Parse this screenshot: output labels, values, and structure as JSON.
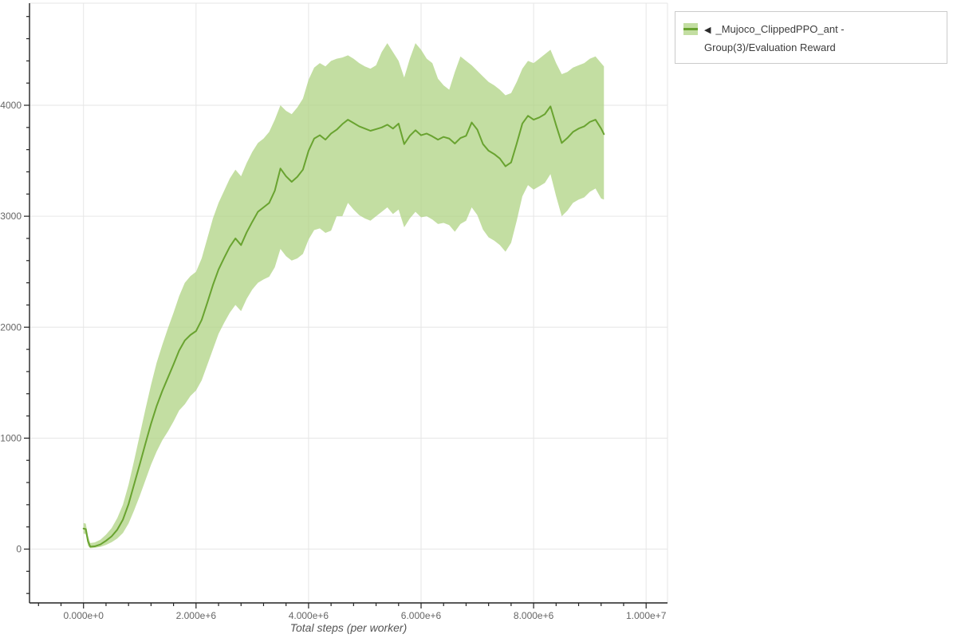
{
  "window": {
    "background": "#ffffff"
  },
  "legend": {
    "marker": "◀",
    "label": "_Mujoco_ClippedPPO_ant - Group(3)/Evaluation Reward"
  },
  "chart_data": {
    "type": "line",
    "title": "",
    "xlabel": "Total steps (per worker)",
    "ylabel": "",
    "grid": true,
    "legend_position": "top-right-outside",
    "x_axis": {
      "lim": [
        -960000,
        10380000
      ],
      "minor_step": 400000,
      "ticks": [
        {
          "value": 0,
          "label": "0.000e+0"
        },
        {
          "value": 2000000,
          "label": "2.000e+6"
        },
        {
          "value": 4000000,
          "label": "4.000e+6"
        },
        {
          "value": 6000000,
          "label": "6.000e+6"
        },
        {
          "value": 8000000,
          "label": "8.000e+6"
        },
        {
          "value": 10000000,
          "label": "1.000e+7"
        }
      ]
    },
    "y_axis": {
      "lim": [
        -485,
        4920
      ],
      "minor_step": 200,
      "ticks": [
        {
          "value": 0,
          "label": "0"
        },
        {
          "value": 1000,
          "label": "1000"
        },
        {
          "value": 2000,
          "label": "2000"
        },
        {
          "value": 3000,
          "label": "3000"
        },
        {
          "value": 4000,
          "label": "4000"
        }
      ]
    },
    "colors": {
      "line": "#69a330",
      "band": "#afd383",
      "band_opacity": 0.75,
      "grid": "#e6e6e6",
      "frame_outline": "#e6e6e6",
      "axis": "#222222",
      "tick_label": "#666666",
      "axis_label": "#555555"
    },
    "series": [
      {
        "name": "_Mujoco_ClippedPPO_ant - Group(3)/Evaluation Reward",
        "x": [
          0,
          40000,
          80000,
          120000,
          200000,
          300000,
          400000,
          500000,
          600000,
          700000,
          800000,
          900000,
          1000000,
          1100000,
          1200000,
          1300000,
          1400000,
          1500000,
          1600000,
          1700000,
          1800000,
          1900000,
          2000000,
          2100000,
          2200000,
          2300000,
          2400000,
          2500000,
          2600000,
          2700000,
          2800000,
          2900000,
          3000000,
          3100000,
          3200000,
          3300000,
          3400000,
          3500000,
          3600000,
          3700000,
          3800000,
          3900000,
          4000000,
          4100000,
          4200000,
          4300000,
          4400000,
          4500000,
          4600000,
          4700000,
          4800000,
          4900000,
          5000000,
          5100000,
          5200000,
          5300000,
          5400000,
          5500000,
          5600000,
          5700000,
          5800000,
          5900000,
          6000000,
          6100000,
          6200000,
          6300000,
          6400000,
          6500000,
          6600000,
          6700000,
          6800000,
          6900000,
          7000000,
          7100000,
          7200000,
          7300000,
          7400000,
          7500000,
          7600000,
          7700000,
          7800000,
          7900000,
          8000000,
          8100000,
          8200000,
          8300000,
          8400000,
          8500000,
          8600000,
          8700000,
          8800000,
          8900000,
          9000000,
          9100000,
          9200000,
          9250000
        ],
        "mean": [
          185,
          180,
          70,
          22,
          25,
          42,
          75,
          115,
          175,
          265,
          405,
          585,
          765,
          950,
          1130,
          1290,
          1425,
          1545,
          1665,
          1790,
          1880,
          1930,
          1965,
          2065,
          2220,
          2380,
          2520,
          2625,
          2725,
          2800,
          2740,
          2855,
          2950,
          3040,
          3080,
          3120,
          3230,
          3430,
          3360,
          3310,
          3355,
          3420,
          3590,
          3700,
          3730,
          3690,
          3745,
          3780,
          3830,
          3870,
          3840,
          3810,
          3790,
          3770,
          3785,
          3800,
          3825,
          3790,
          3835,
          3650,
          3725,
          3775,
          3730,
          3745,
          3720,
          3690,
          3715,
          3700,
          3655,
          3705,
          3725,
          3845,
          3780,
          3650,
          3590,
          3560,
          3520,
          3450,
          3485,
          3655,
          3835,
          3905,
          3870,
          3890,
          3920,
          3990,
          3820,
          3660,
          3705,
          3760,
          3790,
          3810,
          3850,
          3870,
          3790,
          3740
        ],
        "lower": [
          140,
          135,
          30,
          8,
          12,
          20,
          38,
          62,
          95,
          145,
          230,
          350,
          480,
          620,
          760,
          880,
          980,
          1060,
          1150,
          1250,
          1305,
          1380,
          1430,
          1520,
          1660,
          1800,
          1940,
          2040,
          2130,
          2200,
          2145,
          2255,
          2340,
          2400,
          2430,
          2455,
          2540,
          2705,
          2640,
          2600,
          2620,
          2660,
          2790,
          2875,
          2890,
          2850,
          2870,
          3000,
          3000,
          3120,
          3060,
          3010,
          2980,
          2960,
          3000,
          3040,
          3080,
          3020,
          3060,
          2900,
          2980,
          3040,
          2990,
          3000,
          2970,
          2930,
          2940,
          2920,
          2860,
          2930,
          2960,
          3080,
          3010,
          2880,
          2810,
          2780,
          2740,
          2680,
          2760,
          2960,
          3180,
          3280,
          3240,
          3270,
          3300,
          3380,
          3180,
          3000,
          3050,
          3120,
          3150,
          3170,
          3220,
          3250,
          3160,
          3150
        ],
        "upper": [
          235,
          230,
          120,
          55,
          60,
          85,
          130,
          190,
          280,
          400,
          580,
          800,
          1030,
          1260,
          1480,
          1680,
          1840,
          1990,
          2130,
          2280,
          2400,
          2460,
          2500,
          2620,
          2800,
          2980,
          3120,
          3230,
          3340,
          3420,
          3360,
          3480,
          3580,
          3660,
          3700,
          3760,
          3870,
          4000,
          3950,
          3920,
          3980,
          4060,
          4230,
          4340,
          4380,
          4350,
          4400,
          4420,
          4430,
          4450,
          4420,
          4380,
          4350,
          4330,
          4360,
          4480,
          4560,
          4480,
          4400,
          4250,
          4420,
          4560,
          4500,
          4420,
          4380,
          4240,
          4180,
          4140,
          4300,
          4440,
          4400,
          4360,
          4310,
          4260,
          4210,
          4180,
          4140,
          4090,
          4110,
          4210,
          4330,
          4400,
          4380,
          4420,
          4460,
          4500,
          4380,
          4280,
          4300,
          4340,
          4360,
          4380,
          4420,
          4440,
          4380,
          4350
        ]
      }
    ]
  }
}
